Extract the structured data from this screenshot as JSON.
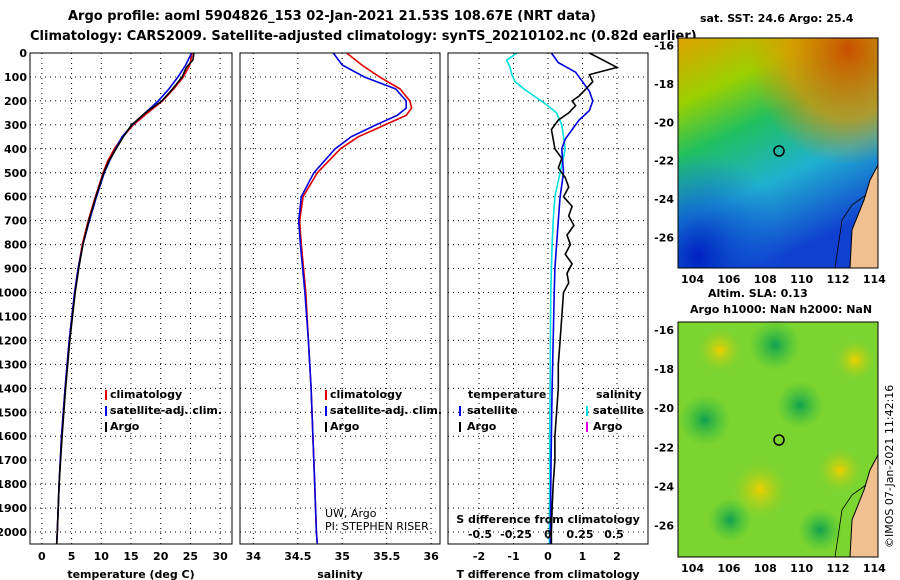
{
  "header": {
    "line1": "Argo profile: aoml 5904826_153 02-Jan-2021 21.53S 108.67E (NRT data)",
    "line2": "Climatology: CARS2009. Satellite-adjusted climatology: synTS_20210102.nc (0.82d earlier)"
  },
  "colors": {
    "climatology": "#e00000",
    "satellite": "#0000e0",
    "argo": "#000000",
    "sat_diff_temp": "#00e0e0",
    "argo_diff_sal": "#e000e0"
  },
  "chart_data": [
    {
      "type": "line",
      "xlabel": "temperature (deg C)",
      "xticks": [
        "0",
        "5",
        "10",
        "15",
        "20",
        "25",
        "30"
      ],
      "xlim": [
        -2,
        32
      ],
      "ylim": [
        0,
        2050
      ],
      "yticks": [
        0,
        100,
        200,
        300,
        400,
        500,
        600,
        700,
        800,
        900,
        1000,
        1100,
        1200,
        1300,
        1400,
        1500,
        1600,
        1700,
        1800,
        1900,
        2000
      ],
      "legend": [
        "climatology",
        "satellite-adj. clim.",
        "Argo"
      ],
      "series": [
        {
          "name": "climatology",
          "depth": [
            0,
            50,
            100,
            150,
            200,
            250,
            300,
            350,
            400,
            450,
            500,
            600,
            700,
            800,
            900,
            1000,
            1200,
            1400,
            1600,
            1800,
            2000,
            2050
          ],
          "values": [
            25.3,
            24.9,
            23.8,
            22.2,
            20.3,
            17.8,
            15.4,
            13.6,
            12.2,
            11.1,
            10.3,
            9.0,
            7.8,
            6.8,
            6.1,
            5.5,
            4.6,
            3.9,
            3.3,
            2.9,
            2.6,
            2.5
          ]
        },
        {
          "name": "satellite-adj. clim.",
          "depth": [
            0,
            50,
            100,
            150,
            200,
            250,
            300,
            350,
            400,
            450,
            500,
            600,
            700,
            800,
            900,
            1000,
            1200,
            1400,
            1600,
            1800,
            2000,
            2050
          ],
          "values": [
            25.2,
            24.2,
            22.9,
            21.4,
            19.6,
            17.4,
            15.2,
            13.5,
            12.4,
            11.4,
            10.5,
            9.2,
            8.0,
            6.9,
            6.1,
            5.5,
            4.6,
            3.9,
            3.3,
            2.9,
            2.6,
            2.5
          ]
        },
        {
          "name": "Argo",
          "depth": [
            0,
            30,
            60,
            100,
            150,
            200,
            250,
            300,
            350,
            400,
            450,
            500,
            600,
            700,
            800,
            900,
            1000,
            1200,
            1400,
            1600,
            1800,
            2000,
            2050
          ],
          "values": [
            25.6,
            25.4,
            24.3,
            23.6,
            22.0,
            20.2,
            17.4,
            15.1,
            13.7,
            12.5,
            11.3,
            10.4,
            9.1,
            7.9,
            6.9,
            6.2,
            5.6,
            4.7,
            4.0,
            3.4,
            2.9,
            2.6,
            2.5
          ]
        }
      ]
    },
    {
      "type": "line",
      "xlabel": "salinity",
      "xticks": [
        "34",
        "34.5",
        "35",
        "35.5",
        "36"
      ],
      "xlim": [
        33.85,
        36.1
      ],
      "ylim": [
        0,
        2050
      ],
      "legend": [
        "climatology",
        "satellite-adj. clim.",
        "Argo"
      ],
      "series": [
        {
          "name": "climatology",
          "depth": [
            0,
            50,
            100,
            150,
            200,
            230,
            260,
            300,
            350,
            400,
            500,
            600,
            700,
            800,
            1000,
            1200,
            1400,
            1600,
            1800,
            2000,
            2050
          ],
          "values": [
            35.05,
            35.22,
            35.42,
            35.65,
            35.76,
            35.78,
            35.72,
            35.48,
            35.18,
            34.98,
            34.72,
            34.56,
            34.52,
            34.54,
            34.59,
            34.62,
            34.65,
            34.67,
            34.69,
            34.71,
            34.72
          ]
        },
        {
          "name": "satellite-adj. clim.",
          "depth": [
            0,
            50,
            100,
            150,
            200,
            230,
            260,
            300,
            350,
            400,
            500,
            600,
            700,
            800,
            1000,
            1200,
            1400,
            1600,
            1800,
            2000,
            2050
          ],
          "values": [
            34.9,
            35.0,
            35.25,
            35.6,
            35.72,
            35.72,
            35.62,
            35.38,
            35.1,
            34.92,
            34.68,
            34.54,
            34.51,
            34.53,
            34.58,
            34.62,
            34.65,
            34.67,
            34.69,
            34.71,
            34.72
          ]
        }
      ],
      "annotation": [
        "UW, Argo",
        "PI: STEPHEN RISER"
      ]
    },
    {
      "type": "line",
      "xlabel": "T difference from climatology",
      "xlabel_top": "S difference from climatology",
      "xticks": [
        "-2",
        "-1",
        "0",
        "1",
        "2"
      ],
      "xticks_top": [
        "-0.5",
        "-0.25",
        "0",
        "0.25",
        "0.5"
      ],
      "xlim": [
        -2.9,
        2.9
      ],
      "ylim": [
        0,
        2050
      ],
      "legend_left_title": "temperature",
      "legend_right_title": "salinity",
      "legend_left": [
        "satellite",
        "Argo"
      ],
      "legend_right": [
        "satellite",
        "Argo"
      ],
      "series": [
        {
          "name": "satellite",
          "depth": [
            0,
            30,
            60,
            90,
            120,
            150,
            180,
            200,
            220,
            250,
            300,
            350,
            400,
            500,
            600,
            700,
            800,
            900,
            1000,
            1200,
            1400,
            1600,
            1800,
            2000,
            2050
          ],
          "values": [
            -0.9,
            -1.2,
            -1.1,
            -1.05,
            -0.95,
            -0.7,
            -0.4,
            -0.2,
            0.0,
            0.25,
            0.4,
            0.45,
            0.5,
            0.35,
            0.2,
            0.15,
            0.12,
            0.1,
            0.08,
            0.07,
            0.06,
            0.05,
            0.05,
            0.04,
            0.04
          ]
        },
        {
          "name": "satellite",
          "depth": [
            0,
            40,
            80,
            120,
            160,
            200,
            240,
            280,
            320,
            360,
            400,
            500,
            600,
            700,
            800,
            900,
            1000,
            1200,
            1400,
            1600,
            1800,
            2000,
            2050
          ],
          "values": [
            0.1,
            0.3,
            0.8,
            1.0,
            1.2,
            1.3,
            1.2,
            0.9,
            0.7,
            0.5,
            0.4,
            0.45,
            0.35,
            0.3,
            0.25,
            0.2,
            0.18,
            0.15,
            0.12,
            0.1,
            0.08,
            0.07,
            0.07
          ]
        },
        {
          "name": "Argo",
          "depth": [
            0,
            30,
            60,
            90,
            120,
            150,
            180,
            200,
            220,
            250,
            280,
            320,
            360,
            400,
            440,
            480,
            520,
            560,
            600,
            640,
            680,
            720,
            760,
            800,
            840,
            880,
            920,
            960,
            1000,
            1100,
            1200,
            1300,
            1400,
            1500,
            1600,
            1700,
            1800,
            1900,
            2000,
            2050
          ],
          "values": [
            1.2,
            1.6,
            2.0,
            1.2,
            1.3,
            1.1,
            0.9,
            0.7,
            0.8,
            0.6,
            0.3,
            0.1,
            0.15,
            0.2,
            0.4,
            0.3,
            0.5,
            0.6,
            0.45,
            0.7,
            0.6,
            0.75,
            0.55,
            0.65,
            0.5,
            0.7,
            0.55,
            0.6,
            0.45,
            0.4,
            0.35,
            0.3,
            0.3,
            0.25,
            0.2,
            0.2,
            0.15,
            0.12,
            0.1,
            0.1
          ]
        }
      ]
    },
    {
      "type": "heatmap",
      "title": "sat. SST: 24.6 Argo: 25.4",
      "xticks": [
        "104",
        "106",
        "108",
        "110",
        "112",
        "114"
      ],
      "yticks": [
        "-16",
        "-18",
        "-20",
        "-22",
        "-24",
        "-26"
      ],
      "xlim": [
        103.2,
        114.2
      ],
      "ylim": [
        -27.6,
        -15.6
      ],
      "marker": {
        "lon": 108.67,
        "lat": -21.53
      }
    },
    {
      "type": "heatmap",
      "title": "Altim. SLA: 0.13",
      "subtitle": "Argo h1000: NaN h2000: NaN",
      "xticks": [
        "104",
        "106",
        "108",
        "110",
        "112",
        "114"
      ],
      "yticks": [
        "-16",
        "-18",
        "-20",
        "-22",
        "-24",
        "-26"
      ],
      "xlim": [
        103.2,
        114.2
      ],
      "ylim": [
        -27.6,
        -15.6
      ],
      "marker": {
        "lon": 108.67,
        "lat": -21.53
      }
    }
  ],
  "credit": "©IMOS 07-Jan-2021 11:42:16"
}
